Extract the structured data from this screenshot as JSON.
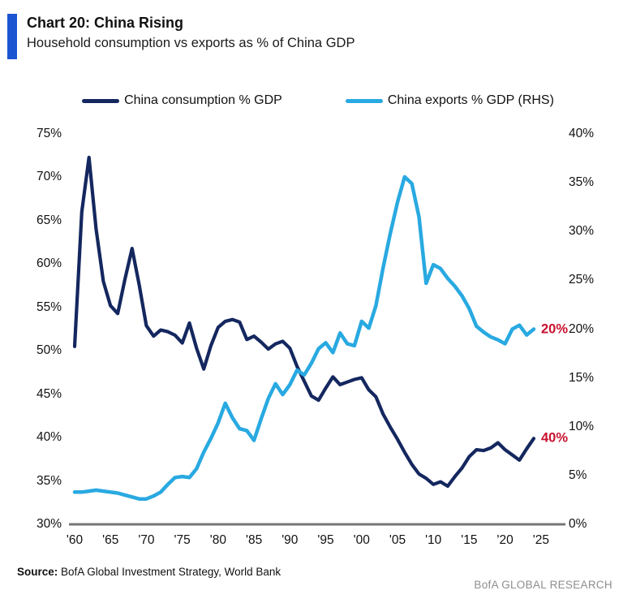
{
  "header": {
    "title": "Chart 20: China Rising",
    "subtitle": "Household consumption vs exports as % of China GDP",
    "accent_color": "#1C55D2"
  },
  "legend": {
    "items": [
      {
        "label": "China consumption % GDP",
        "color": "#14275F"
      },
      {
        "label": "China exports % GDP (RHS)",
        "color": "#29A9E1"
      }
    ]
  },
  "chart_data": {
    "type": "line",
    "title": "Chart 20: China Rising",
    "subtitle": "Household consumption vs exports as % of China GDP",
    "x_start": 1960,
    "x_end": 2024,
    "x_tick_labels": [
      "'60",
      "'65",
      "'70",
      "'75",
      "'80",
      "'85",
      "'90",
      "'95",
      "'00",
      "'05",
      "'10",
      "'15",
      "'20",
      "'25"
    ],
    "x_tick_years": [
      1960,
      1965,
      1970,
      1975,
      1980,
      1985,
      1990,
      1995,
      2000,
      2005,
      2010,
      2015,
      2020,
      2025
    ],
    "left_axis": {
      "range": [
        30,
        75
      ],
      "tick_labels": [
        "75%",
        "70%",
        "65%",
        "60%",
        "55%",
        "50%",
        "45%",
        "40%",
        "35%",
        "30%"
      ],
      "tick_values": [
        75,
        70,
        65,
        60,
        55,
        50,
        45,
        40,
        35,
        30
      ]
    },
    "right_axis": {
      "range": [
        0,
        40
      ],
      "tick_labels": [
        "40%",
        "35%",
        "30%",
        "25%",
        "20%",
        "15%",
        "10%",
        "5%",
        "0%"
      ],
      "tick_values": [
        40,
        35,
        30,
        25,
        20,
        15,
        10,
        5,
        0
      ]
    },
    "grid": false,
    "legend_position": "top",
    "axis_line_color": "#767676",
    "annotation_color": "#C8102E",
    "series": [
      {
        "name": "China consumption % GDP",
        "axis": "left",
        "color": "#14275F",
        "stroke_width": 4.2,
        "values": [
          50.5,
          66.0,
          72.3,
          64.0,
          58.0,
          55.2,
          54.3,
          58.2,
          61.8,
          57.6,
          52.9,
          51.7,
          52.4,
          52.2,
          51.8,
          50.9,
          53.2,
          50.3,
          47.9,
          50.6,
          52.7,
          53.4,
          53.6,
          53.3,
          51.3,
          51.7,
          51.0,
          50.2,
          50.8,
          51.1,
          50.3,
          48.2,
          46.5,
          44.8,
          44.3,
          45.7,
          47.0,
          46.1,
          46.4,
          46.7,
          46.9,
          45.5,
          44.7,
          42.7,
          41.2,
          39.8,
          38.3,
          36.9,
          35.8,
          35.3,
          34.6,
          34.9,
          34.4,
          35.5,
          36.5,
          37.8,
          38.6,
          38.5,
          38.8,
          39.4,
          38.6,
          38.0,
          37.4,
          38.7,
          39.9
        ]
      },
      {
        "name": "China exports % GDP (RHS)",
        "axis": "right",
        "color": "#29A9E1",
        "stroke_width": 4.5,
        "values": [
          3.3,
          3.3,
          3.4,
          3.5,
          3.4,
          3.3,
          3.2,
          3.0,
          2.8,
          2.6,
          2.6,
          2.9,
          3.3,
          4.1,
          4.8,
          4.9,
          4.8,
          5.7,
          7.4,
          8.8,
          10.4,
          12.4,
          10.9,
          9.8,
          9.6,
          8.6,
          10.8,
          12.9,
          14.4,
          13.3,
          14.3,
          15.8,
          15.3,
          16.5,
          18.0,
          18.6,
          17.6,
          19.6,
          18.5,
          18.3,
          20.8,
          20.1,
          22.4,
          26.3,
          29.8,
          33.0,
          35.6,
          34.9,
          31.5,
          24.7,
          26.6,
          26.2,
          25.2,
          24.4,
          23.4,
          22.1,
          20.3,
          19.7,
          19.2,
          18.9,
          18.5,
          20.0,
          20.4,
          19.4,
          20.0
        ]
      }
    ],
    "end_labels": [
      {
        "text": "20%",
        "series_index": 1
      },
      {
        "text": "40%",
        "series_index": 0
      }
    ]
  },
  "footer": {
    "source_label": "Source:",
    "source_text": " BofA Global Investment Strategy, World Bank",
    "brand": "BofA GLOBAL RESEARCH"
  }
}
